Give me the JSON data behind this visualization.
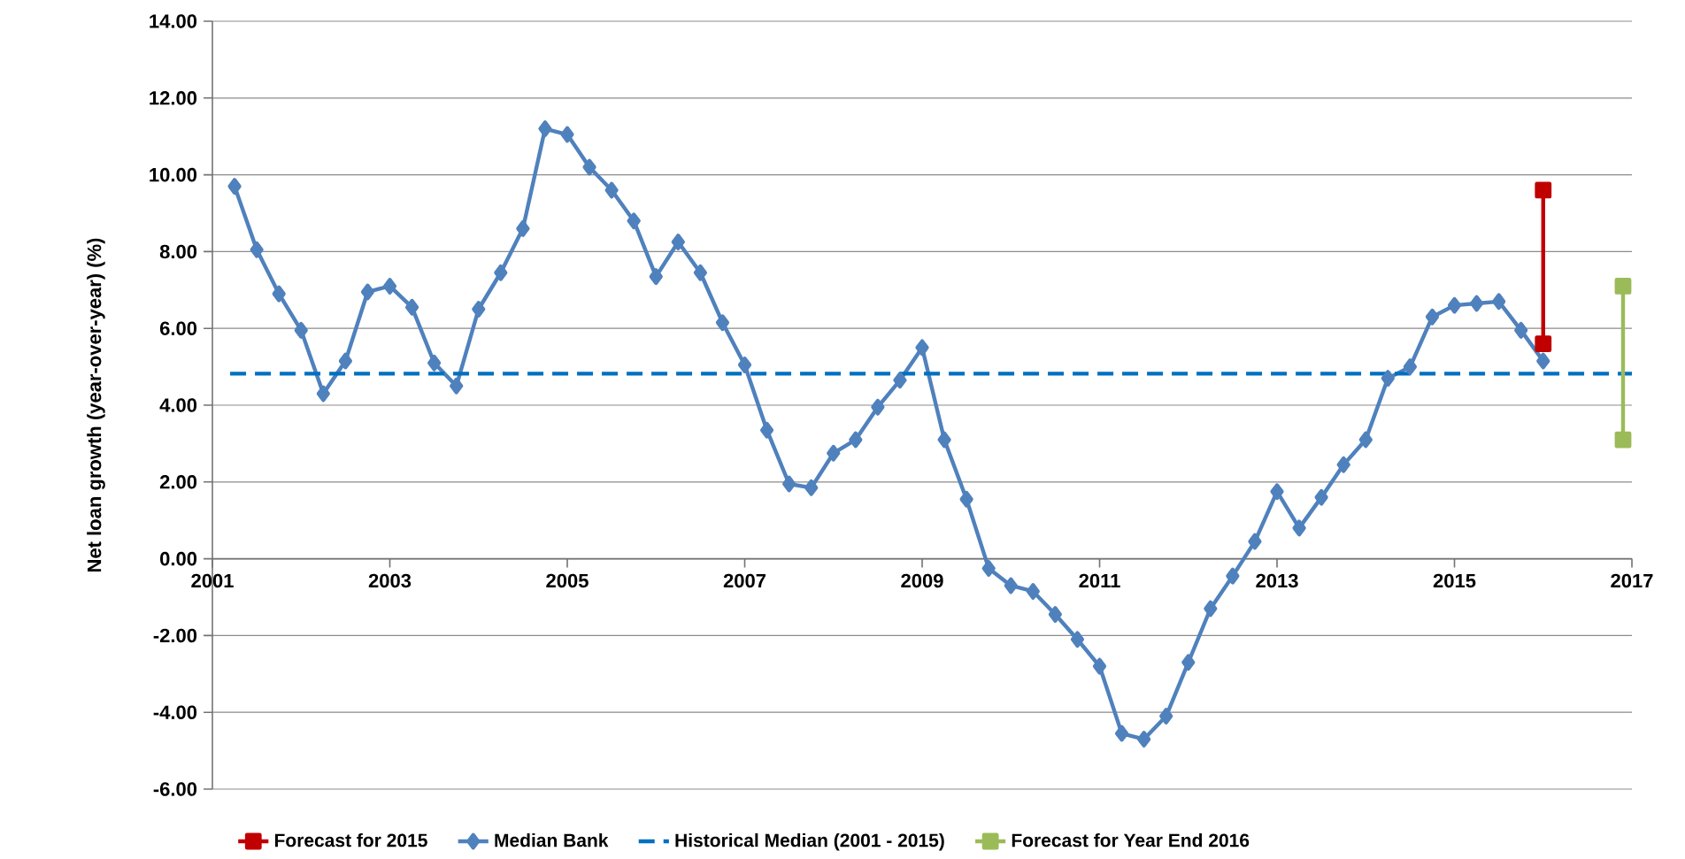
{
  "chart_data": {
    "type": "line",
    "ylabel": "Net loan growth (year-over-year) (%)",
    "xlim": [
      2001,
      2017
    ],
    "xticks": [
      2001,
      2003,
      2005,
      2007,
      2009,
      2011,
      2013,
      2015,
      2017
    ],
    "ylim": [
      -6,
      14
    ],
    "yticks": [
      {
        "value": -6,
        "label": "-6.00"
      },
      {
        "value": -4,
        "label": "-4.00"
      },
      {
        "value": -2,
        "label": "-2.00"
      },
      {
        "value": 0,
        "label": "0.00"
      },
      {
        "value": 2,
        "label": "2.00"
      },
      {
        "value": 4,
        "label": "4.00"
      },
      {
        "value": 6,
        "label": "6.00"
      },
      {
        "value": 8,
        "label": "8.00"
      },
      {
        "value": 10,
        "label": "10.00"
      },
      {
        "value": 12,
        "label": "12.00"
      },
      {
        "value": 14,
        "label": "14.00"
      }
    ],
    "grid": "y",
    "legend": "bottom",
    "series": [
      {
        "name": "Forecast for 2015",
        "color": "#c00000",
        "marker": "square",
        "line_style": "solid",
        "x": [
          2016.0,
          2016.0
        ],
        "values": [
          9.6,
          5.6
        ]
      },
      {
        "name": "Median Bank",
        "color": "#4f81bd",
        "marker": "diamond",
        "line_style": "solid",
        "x": [
          2001.25,
          2001.5,
          2001.75,
          2002.0,
          2002.25,
          2002.5,
          2002.75,
          2003.0,
          2003.25,
          2003.5,
          2003.75,
          2004.0,
          2004.25,
          2004.5,
          2004.75,
          2005.0,
          2005.25,
          2005.5,
          2005.75,
          2006.0,
          2006.25,
          2006.5,
          2006.75,
          2007.0,
          2007.25,
          2007.5,
          2007.75,
          2008.0,
          2008.25,
          2008.5,
          2008.75,
          2009.0,
          2009.25,
          2009.5,
          2009.75,
          2010.0,
          2010.25,
          2010.5,
          2010.75,
          2011.0,
          2011.25,
          2011.5,
          2011.75,
          2012.0,
          2012.25,
          2012.5,
          2012.75,
          2013.0,
          2013.25,
          2013.5,
          2013.75,
          2014.0,
          2014.25,
          2014.5,
          2014.75,
          2015.0,
          2015.25,
          2015.5,
          2015.75,
          2016.0
        ],
        "values": [
          9.7,
          8.05,
          6.9,
          5.95,
          4.3,
          5.15,
          6.95,
          7.1,
          6.55,
          5.1,
          4.5,
          6.5,
          7.45,
          8.6,
          11.2,
          11.05,
          10.2,
          9.6,
          8.8,
          7.35,
          8.25,
          7.45,
          6.15,
          5.05,
          3.35,
          1.95,
          1.85,
          2.75,
          3.1,
          3.95,
          4.65,
          5.5,
          3.1,
          1.55,
          -0.25,
          -0.7,
          -0.85,
          -1.45,
          -2.1,
          -2.8,
          -4.55,
          -4.7,
          -4.1,
          -2.7,
          -1.3,
          -0.45,
          0.45,
          1.75,
          0.8,
          1.6,
          2.45,
          3.1,
          4.7,
          5.0,
          6.3,
          6.6,
          6.65,
          6.7,
          5.95,
          5.15
        ]
      },
      {
        "name": "Historical Median (2001 - 2015)",
        "color": "#0070c0",
        "marker": "none",
        "line_style": "dashed",
        "x": [
          2001.2,
          2017.0
        ],
        "values": [
          4.82,
          4.82
        ]
      },
      {
        "name": "Forecast for Year End 2016",
        "color": "#9bbb59",
        "marker": "square",
        "line_style": "solid",
        "x": [
          2016.9,
          2016.9
        ],
        "values": [
          7.1,
          3.1
        ]
      }
    ]
  }
}
